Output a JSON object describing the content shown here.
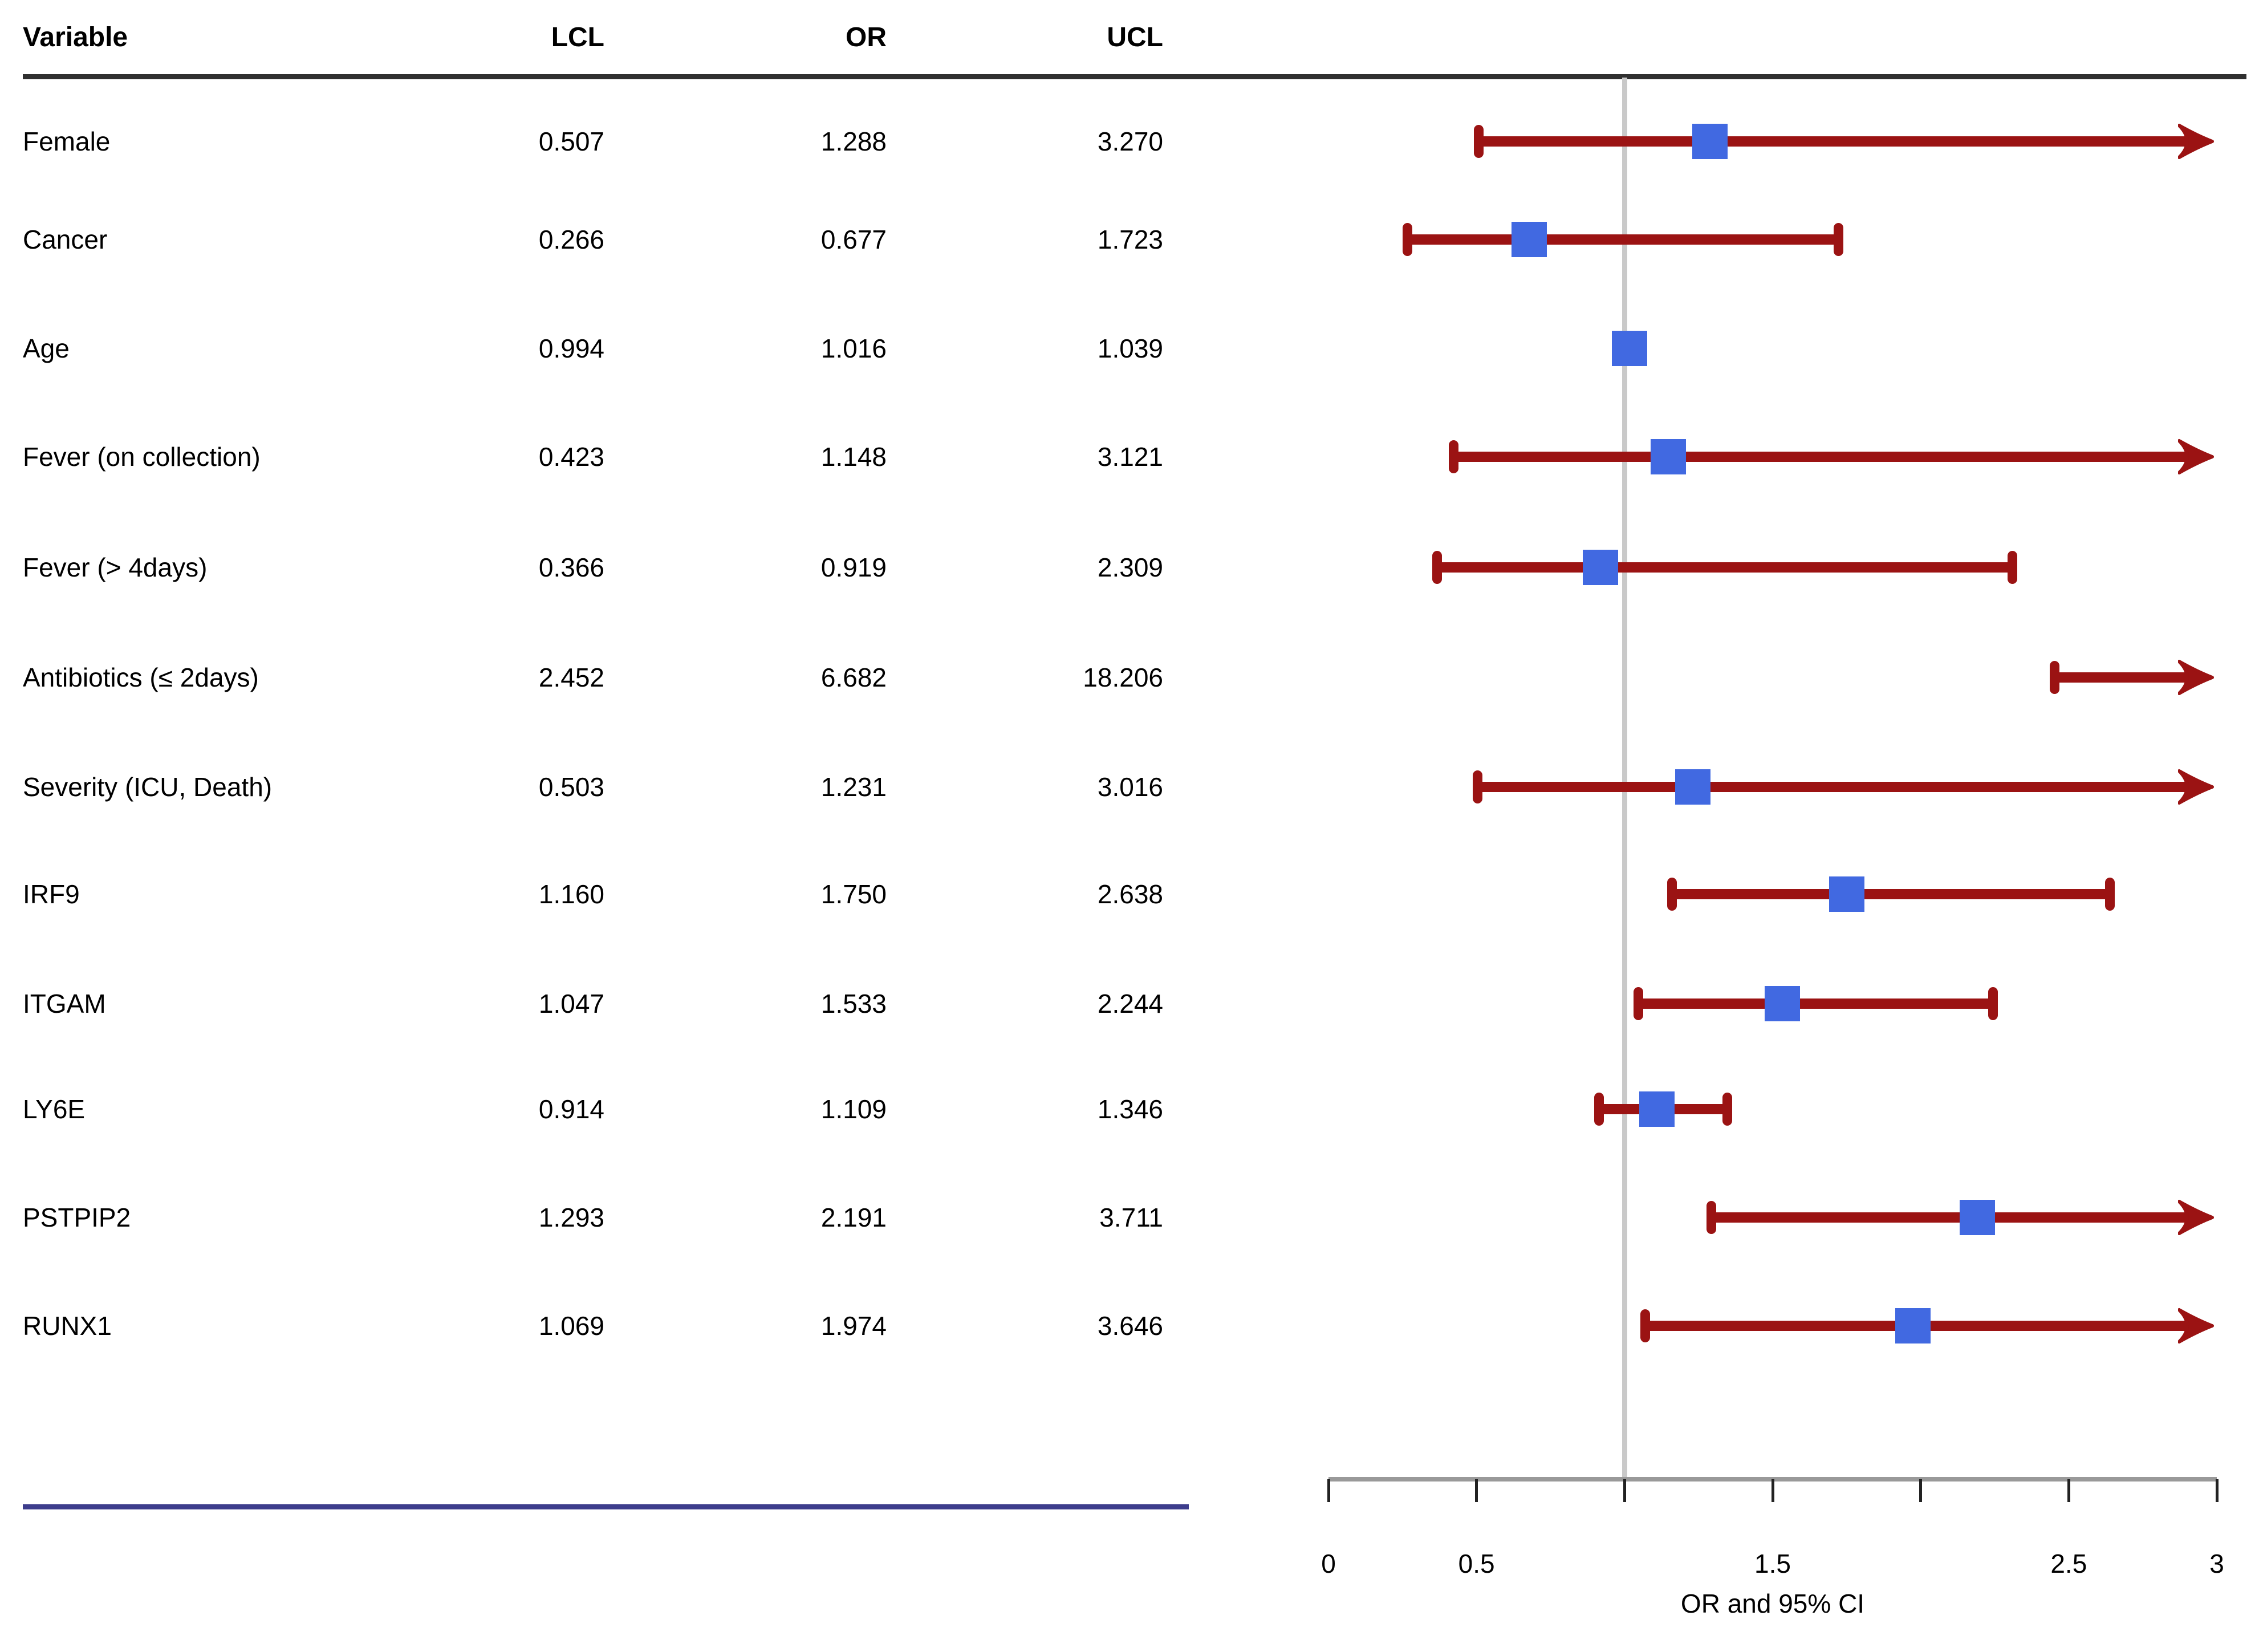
{
  "table": {
    "headers": {
      "variable": "Variable",
      "lcl": "LCL",
      "or": "OR",
      "ucl": "UCL"
    },
    "rows": [
      {
        "variable": "Female",
        "lcl": "0.507",
        "or": "1.288",
        "ucl": "3.270"
      },
      {
        "variable": "Cancer",
        "lcl": "0.266",
        "or": "0.677",
        "ucl": "1.723"
      },
      {
        "variable": "Age",
        "lcl": "0.994",
        "or": "1.016",
        "ucl": "1.039"
      },
      {
        "variable": "Fever (on collection)",
        "lcl": "0.423",
        "or": "1.148",
        "ucl": "3.121"
      },
      {
        "variable": "Fever (> 4days)",
        "lcl": "0.366",
        "or": "0.919",
        "ucl": "2.309"
      },
      {
        "variable": "Antibiotics (≤ 2days)",
        "lcl": "2.452",
        "or": "6.682",
        "ucl": "18.206"
      },
      {
        "variable": "Severity (ICU, Death)",
        "lcl": "0.503",
        "or": "1.231",
        "ucl": "3.016"
      },
      {
        "variable": "IRF9",
        "lcl": "1.160",
        "or": "1.750",
        "ucl": "2.638"
      },
      {
        "variable": "ITGAM",
        "lcl": "1.047",
        "or": "1.533",
        "ucl": "2.244"
      },
      {
        "variable": "LY6E",
        "lcl": "0.914",
        "or": "1.109",
        "ucl": "1.346"
      },
      {
        "variable": "PSTPIP2",
        "lcl": "1.293",
        "or": "2.191",
        "ucl": "3.711"
      },
      {
        "variable": "RUNX1",
        "lcl": "1.069",
        "or": "1.974",
        "ucl": "3.646"
      }
    ]
  },
  "chart_data": {
    "type": "scatter",
    "variant": "forest_plot",
    "xlabel": "OR and 95% CI",
    "xlim": [
      0,
      3
    ],
    "reference_line": 1.0,
    "grid": false,
    "legend": "none",
    "ticks": [
      {
        "v": 0.0,
        "label": "0"
      },
      {
        "v": 0.5,
        "label": "0.5"
      },
      {
        "v": 1.0,
        "label": ""
      },
      {
        "v": 1.5,
        "label": "1.5"
      },
      {
        "v": 2.0,
        "label": ""
      },
      {
        "v": 2.5,
        "label": "2.5"
      },
      {
        "v": 3.0,
        "label": "3"
      }
    ],
    "rows": [
      {
        "label": "Female",
        "lcl": 0.507,
        "or": 1.288,
        "ucl": 3.27
      },
      {
        "label": "Cancer",
        "lcl": 0.266,
        "or": 0.677,
        "ucl": 1.723
      },
      {
        "label": "Age",
        "lcl": 0.994,
        "or": 1.016,
        "ucl": 1.039
      },
      {
        "label": "Fever (on collection)",
        "lcl": 0.423,
        "or": 1.148,
        "ucl": 3.121
      },
      {
        "label": "Fever (> 4days)",
        "lcl": 0.366,
        "or": 0.919,
        "ucl": 2.309
      },
      {
        "label": "Antibiotics (≤ 2days)",
        "lcl": 2.452,
        "or": 6.682,
        "ucl": 18.206
      },
      {
        "label": "Severity (ICU, Death)",
        "lcl": 0.503,
        "or": 1.231,
        "ucl": 3.016
      },
      {
        "label": "IRF9",
        "lcl": 1.16,
        "or": 1.75,
        "ucl": 2.638
      },
      {
        "label": "ITGAM",
        "lcl": 1.047,
        "or": 1.533,
        "ucl": 2.244
      },
      {
        "label": "LY6E",
        "lcl": 0.914,
        "or": 1.109,
        "ucl": 1.346
      },
      {
        "label": "PSTPIP2",
        "lcl": 1.293,
        "or": 2.191,
        "ucl": 3.711
      },
      {
        "label": "RUNX1",
        "lcl": 1.069,
        "or": 1.974,
        "ucl": 3.646
      }
    ]
  },
  "colors": {
    "ci_line": "#9b1313",
    "or_marker": "#4169e1",
    "reference_line": "#c9c9c9",
    "axis_line": "#999999",
    "tick": "#222222",
    "header_rule": "#303030",
    "table_bottom_rule": "#3d3d8c",
    "text": "#000000"
  }
}
